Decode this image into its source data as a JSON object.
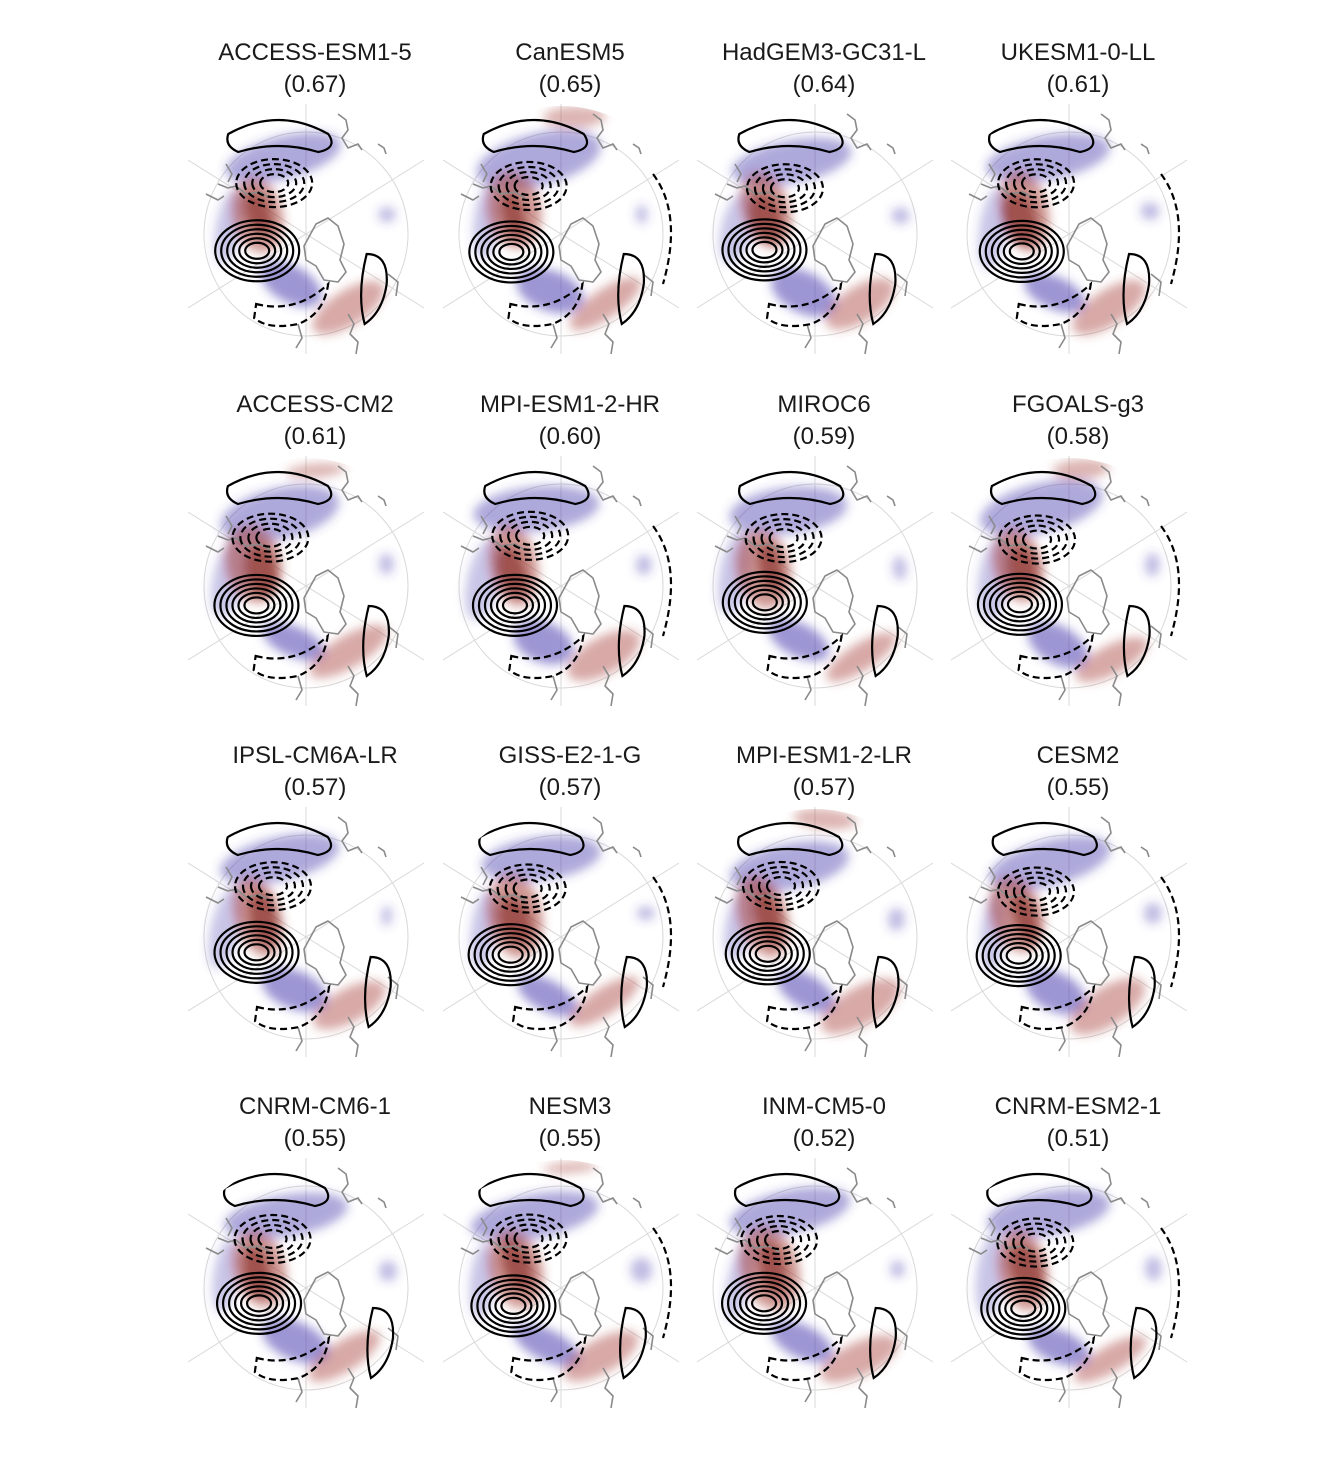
{
  "panels": [
    {
      "name": "ACCESS-ESM1-5",
      "corr": "(0.67)"
    },
    {
      "name": "CanESM5",
      "corr": "(0.65)"
    },
    {
      "name": "HadGEM3-GC31-L",
      "corr": "(0.64)"
    },
    {
      "name": "UKESM1-0-LL",
      "corr": "(0.61)"
    },
    {
      "name": "ACCESS-CM2",
      "corr": "(0.61)"
    },
    {
      "name": "MPI-ESM1-2-HR",
      "corr": "(0.60)"
    },
    {
      "name": "MIROC6",
      "corr": "(0.59)"
    },
    {
      "name": "FGOALS-g3",
      "corr": "(0.58)"
    },
    {
      "name": "IPSL-CM6A-LR",
      "corr": "(0.57)"
    },
    {
      "name": "GISS-E2-1-G",
      "corr": "(0.57)"
    },
    {
      "name": "MPI-ESM1-2-LR",
      "corr": "(0.57)"
    },
    {
      "name": "CESM2",
      "corr": "(0.55)"
    },
    {
      "name": "CNRM-CM6-1",
      "corr": "(0.55)"
    },
    {
      "name": "NESM3",
      "corr": "(0.55)"
    },
    {
      "name": "INM-CM5-0",
      "corr": "(0.52)"
    },
    {
      "name": "CNRM-ESM2-1",
      "corr": "(0.51)"
    }
  ],
  "colors": {
    "positive_shading": "#a8433b",
    "negative_shading": "#4a3fb0",
    "contour": "#000000",
    "coastline": "#808080",
    "grid": "#d9d9d9"
  }
}
